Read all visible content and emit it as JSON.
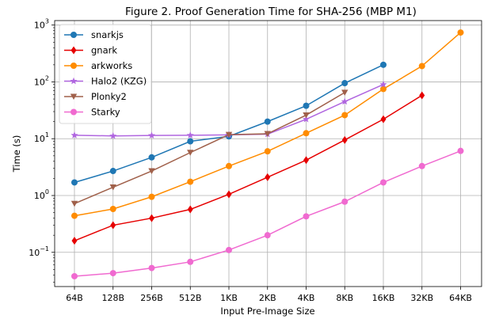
{
  "chart_data": {
    "type": "line",
    "title": "Figure 2. Proof Generation Time for SHA-256 (MBP M1)",
    "xlabel": "Input Pre-Image Size",
    "ylabel": "Time (s)",
    "yscale": "log",
    "ylim": [
      0.025,
      1200
    ],
    "grid": true,
    "legend_position": "top-left",
    "categories": [
      "64B",
      "128B",
      "256B",
      "512B",
      "1KB",
      "2KB",
      "4KB",
      "8KB",
      "16KB",
      "32KB",
      "64KB"
    ],
    "yticks": [
      {
        "value": 1000,
        "base": "10",
        "exp": "3"
      },
      {
        "value": 100,
        "base": "10",
        "exp": "2"
      },
      {
        "value": 10,
        "base": "10",
        "exp": "1"
      },
      {
        "value": 1,
        "base": "10",
        "exp": "0"
      },
      {
        "value": 0.1,
        "base": "10",
        "exp": "−1"
      }
    ],
    "series": [
      {
        "name": "snarkjs",
        "color": "#1f77b4",
        "marker": "circle",
        "values": [
          1.7,
          2.7,
          4.7,
          9.0,
          11.0,
          20.0,
          38.0,
          95.0,
          200.0,
          null,
          null
        ]
      },
      {
        "name": "gnark",
        "color": "#e60000",
        "marker": "diamond",
        "values": [
          0.16,
          0.3,
          0.4,
          0.57,
          1.05,
          2.1,
          4.2,
          9.5,
          22.0,
          58.0,
          null
        ]
      },
      {
        "name": "arkworks",
        "color": "#ff8c00",
        "marker": "circle",
        "values": [
          0.44,
          0.58,
          0.95,
          1.75,
          3.3,
          6.0,
          12.5,
          26.0,
          75.0,
          190.0,
          740.0
        ]
      },
      {
        "name": "Halo2 (KZG)",
        "color": "#b066e0",
        "marker": "star",
        "values": [
          11.5,
          11.2,
          11.4,
          11.5,
          11.7,
          12.0,
          22.0,
          45.0,
          90.0,
          null,
          null
        ]
      },
      {
        "name": "Plonky2",
        "color": "#a0604a",
        "marker": "triangle-down",
        "values": [
          0.72,
          1.4,
          2.7,
          5.7,
          11.8,
          12.2,
          26.0,
          65.0,
          null,
          null,
          null
        ]
      },
      {
        "name": "Starky",
        "color": "#f06ad0",
        "marker": "circle",
        "values": [
          0.038,
          0.043,
          0.053,
          0.068,
          0.11,
          0.2,
          0.43,
          0.78,
          1.7,
          3.3,
          6.1
        ]
      }
    ]
  }
}
